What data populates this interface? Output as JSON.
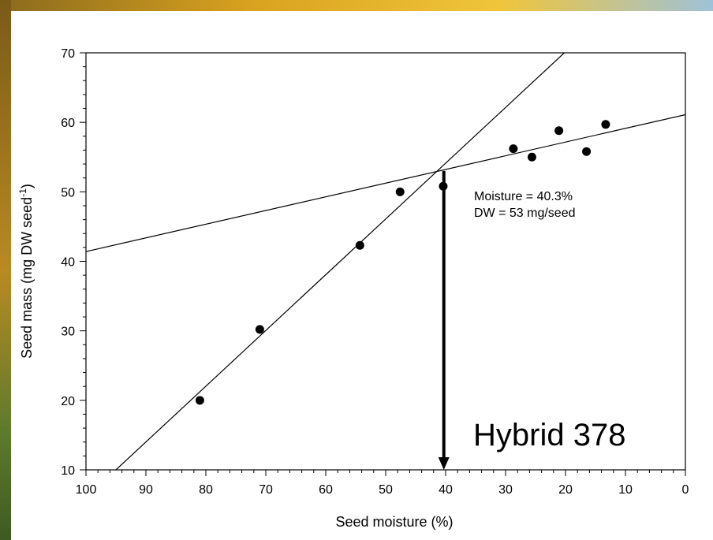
{
  "chart_data": {
    "type": "scatter",
    "xlabel": "Seed moisture (%)",
    "ylabel_main": "Seed mass (mg DW seed",
    "ylabel_sup": "-1",
    "ylabel_end": ")",
    "x_reversed": true,
    "xlim": [
      0,
      100
    ],
    "ylim": [
      10,
      70
    ],
    "x_ticks": [
      "100",
      "90",
      "80",
      "70",
      "60",
      "50",
      "40",
      "30",
      "20",
      "10",
      "0"
    ],
    "x_tick_values": [
      100,
      90,
      80,
      70,
      60,
      50,
      40,
      30,
      20,
      10,
      0
    ],
    "y_ticks": [
      "10",
      "20",
      "30",
      "40",
      "50",
      "60",
      "70"
    ],
    "y_tick_values": [
      10,
      20,
      30,
      40,
      50,
      60,
      70
    ],
    "points": [
      {
        "x": 81.0,
        "y": 20.0
      },
      {
        "x": 71.0,
        "y": 30.2
      },
      {
        "x": 54.3,
        "y": 42.3
      },
      {
        "x": 47.6,
        "y": 50.0
      },
      {
        "x": 40.4,
        "y": 50.8
      },
      {
        "x": 28.7,
        "y": 56.2
      },
      {
        "x": 25.6,
        "y": 55.0
      },
      {
        "x": 21.1,
        "y": 58.8
      },
      {
        "x": 16.5,
        "y": 55.8
      },
      {
        "x": 13.3,
        "y": 59.7
      }
    ],
    "lines": [
      {
        "name": "",
        "x": [
          95,
          20.2
        ],
        "y": [
          10,
          70
        ]
      },
      {
        "name": "",
        "x": [
          100,
          0
        ],
        "y": [
          41.4,
          61.1
        ]
      }
    ],
    "arrow": {
      "x": 40.3,
      "y_from": 53,
      "y_to": 10
    },
    "annotation_lines": [
      "Moisture = 40.3%",
      "DW = 53 mg/seed"
    ],
    "hybrid_label": "Hybrid 378",
    "grid": false
  }
}
